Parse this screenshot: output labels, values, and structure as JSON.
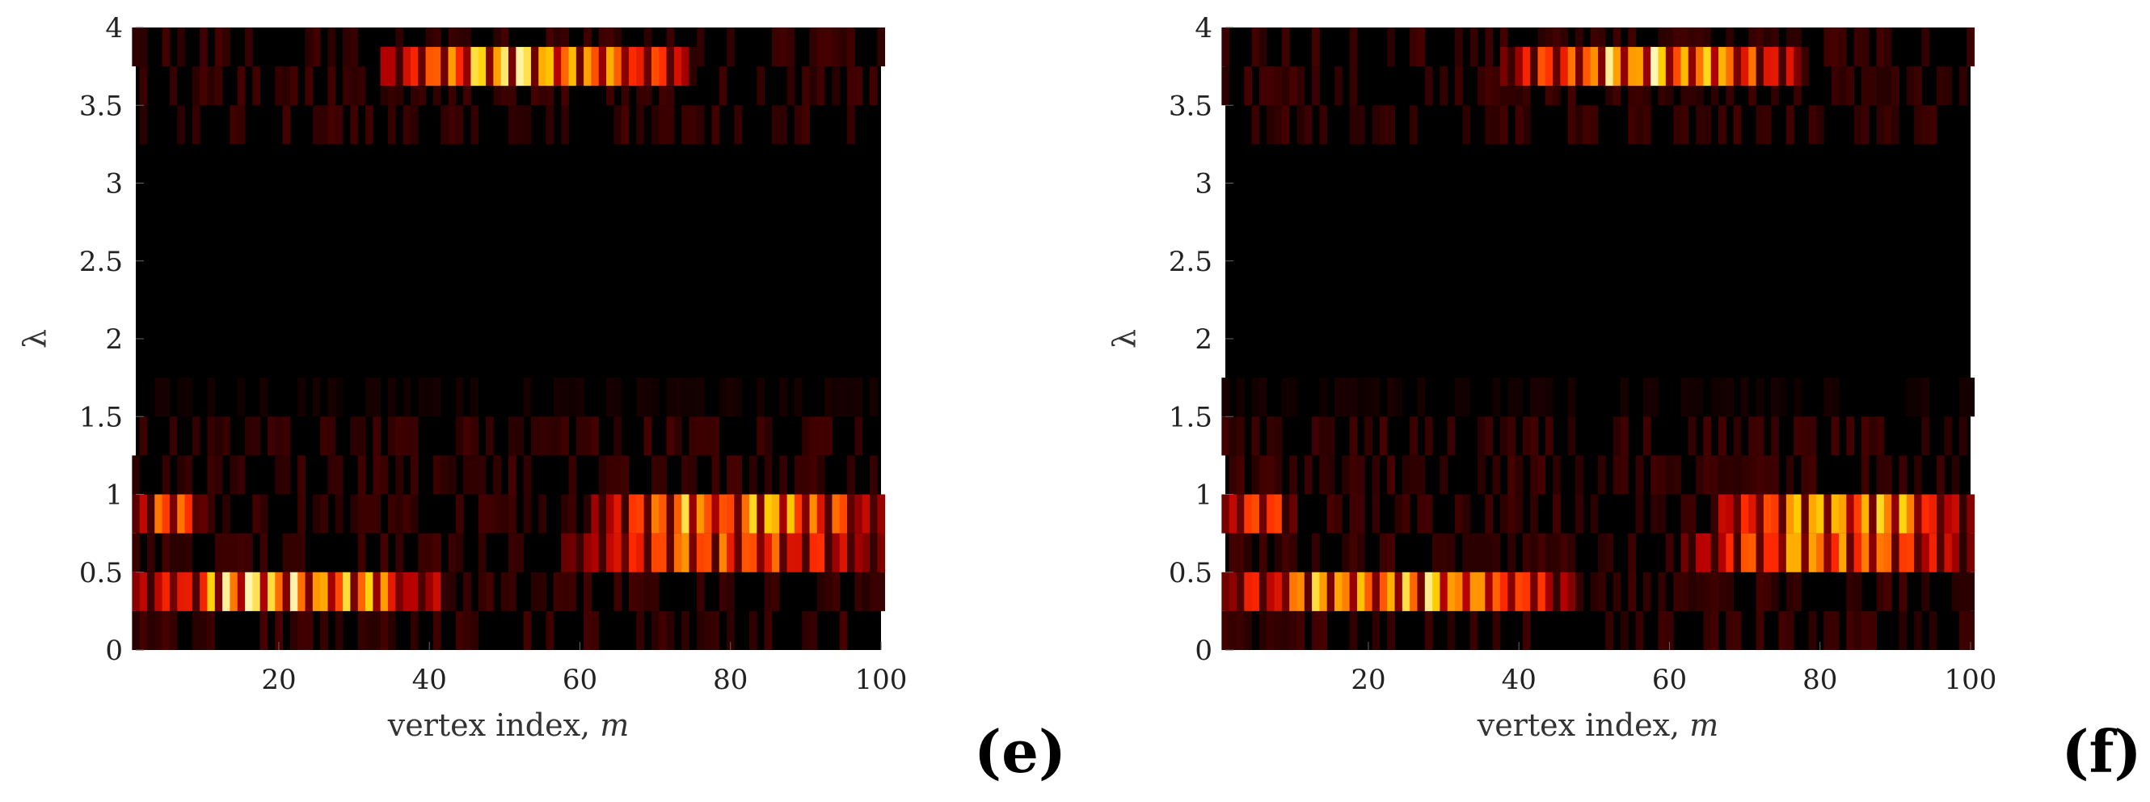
{
  "colors": {
    "background": "#000000",
    "colormap": [
      "#000000",
      "#5a0000",
      "#b40000",
      "#ff2a00",
      "#ff7a00",
      "#ffd200",
      "#ffffe6"
    ]
  },
  "chart_data": [
    {
      "type": "heatmap",
      "panel": "(e)",
      "xlabel": "vertex index, m",
      "ylabel": "λ",
      "xlim": [
        1,
        100
      ],
      "ylim": [
        0,
        4
      ],
      "xticks": [
        "20",
        "40",
        "60",
        "80",
        "100"
      ],
      "yticks": [
        "0",
        "0.5",
        "1",
        "1.5",
        "2",
        "2.5",
        "3",
        "3.5",
        "4"
      ],
      "bands": [
        {
          "lambda": 0.375,
          "vertex_range": [
            1,
            42
          ],
          "intensity": 1.0
        },
        {
          "lambda": 0.625,
          "vertex_range": [
            58,
            100
          ],
          "intensity": 0.75
        },
        {
          "lambda": 0.875,
          "vertex_range": [
            1,
            10
          ],
          "intensity": 0.8
        },
        {
          "lambda": 0.875,
          "vertex_range": [
            62,
            100
          ],
          "intensity": 0.95
        },
        {
          "lambda": 3.75,
          "vertex_range": [
            34,
            75
          ],
          "intensity": 1.0
        }
      ]
    },
    {
      "type": "heatmap",
      "panel": "(f)",
      "xlabel": "vertex index, m",
      "ylabel": "λ",
      "xlim": [
        1,
        100
      ],
      "ylim": [
        0,
        4
      ],
      "xticks": [
        "20",
        "40",
        "60",
        "80",
        "100"
      ],
      "yticks": [
        "0",
        "0.5",
        "1",
        "1.5",
        "2",
        "2.5",
        "3",
        "3.5",
        "4"
      ],
      "bands": [
        {
          "lambda": 0.375,
          "vertex_range": [
            1,
            48
          ],
          "intensity": 1.0
        },
        {
          "lambda": 0.625,
          "vertex_range": [
            62,
            100
          ],
          "intensity": 0.8
        },
        {
          "lambda": 0.875,
          "vertex_range": [
            1,
            10
          ],
          "intensity": 0.75
        },
        {
          "lambda": 0.875,
          "vertex_range": [
            66,
            100
          ],
          "intensity": 0.95
        },
        {
          "lambda": 3.75,
          "vertex_range": [
            38,
            78
          ],
          "intensity": 1.0
        }
      ]
    }
  ]
}
